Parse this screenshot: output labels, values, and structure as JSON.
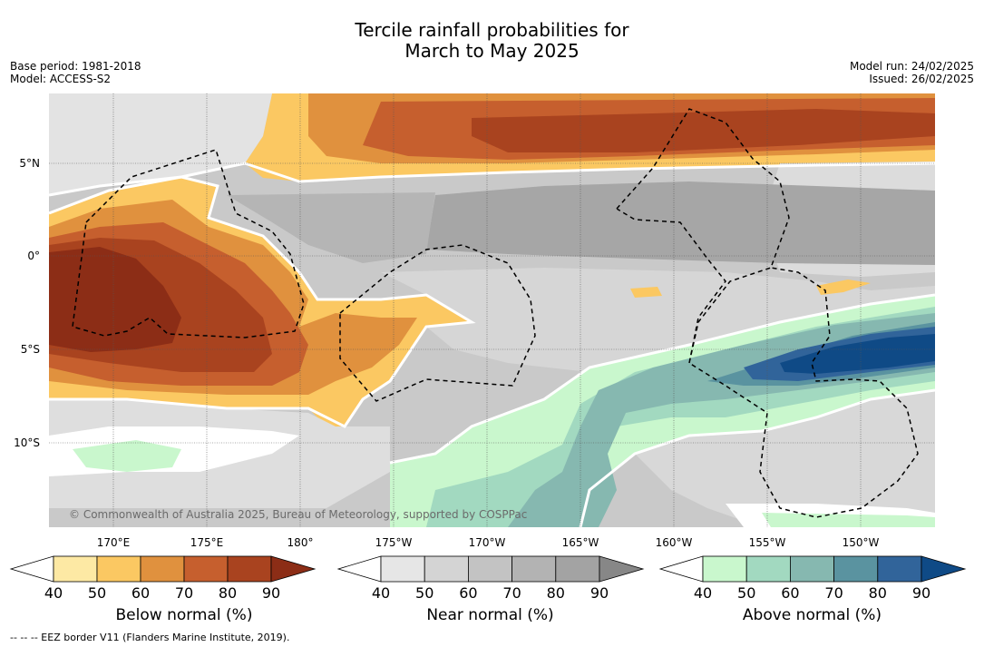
{
  "title_line1": "Tercile rainfall probabilities for",
  "title_line2": "March to May 2025",
  "meta": {
    "base_period": "Base period: 1981-2018",
    "model": "Model: ACCESS-S2",
    "model_run": "Model run: 24/02/2025",
    "issued": "Issued: 26/02/2025"
  },
  "map": {
    "lat_labels": [
      "5°N",
      "0°",
      "5°S",
      "10°S"
    ],
    "lon_labels": [
      "170°E",
      "175°E",
      "180°",
      "175°W",
      "170°W",
      "165°W",
      "160°W",
      "155°W",
      "150°W"
    ],
    "copyright": "© Commonwealth of Australia 2025, Bureau of Meteorology, supported by COSPPac"
  },
  "colorbars": [
    {
      "label": "Below normal (%)",
      "ticks": [
        "40",
        "50",
        "60",
        "70",
        "80",
        "90"
      ],
      "colors": [
        "#ffffff",
        "#fde9a4",
        "#fbc862",
        "#e0913e",
        "#c65f2e",
        "#a9431f",
        "#8c2d16"
      ]
    },
    {
      "label": "Near normal (%)",
      "ticks": [
        "40",
        "50",
        "60",
        "70",
        "80",
        "90"
      ],
      "colors": [
        "#ffffff",
        "#e6e6e6",
        "#d4d4d4",
        "#c3c3c3",
        "#b3b3b3",
        "#a3a3a3",
        "#878787"
      ]
    },
    {
      "label": "Above normal (%)",
      "ticks": [
        "40",
        "50",
        "60",
        "70",
        "80",
        "90"
      ],
      "colors": [
        "#ffffff",
        "#c9f7cd",
        "#a2d9c0",
        "#86b8b0",
        "#5a93a0",
        "#31649a",
        "#0f4a86"
      ]
    }
  ],
  "footnote": "--  --  -- EEZ border V11 (Flanders Marine Institute, 2019)."
}
